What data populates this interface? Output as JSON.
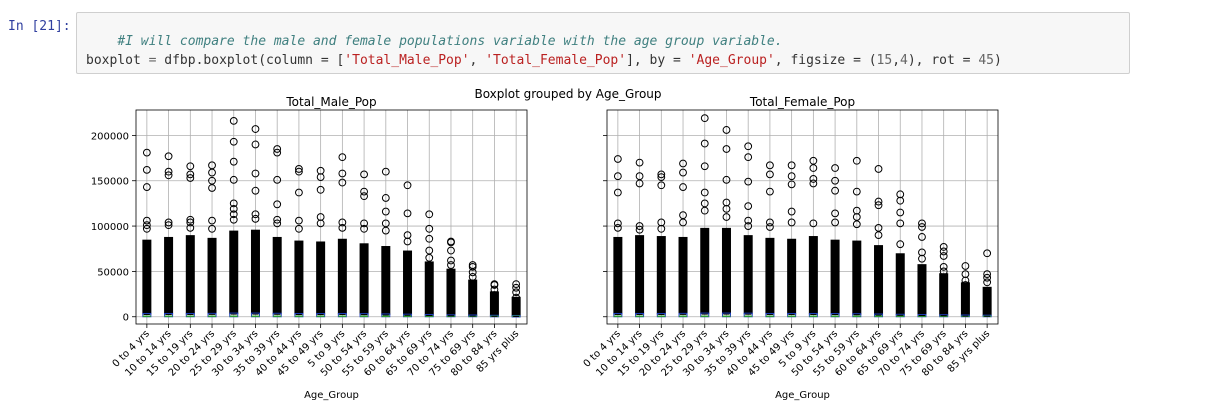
{
  "cell": {
    "prompt": "In [21]:",
    "comment": "#I will compare the male and female populations variable with the age group variable.",
    "code": {
      "var": "boxplot",
      "eq": " = ",
      "call": "dfbp.boxplot(column = [",
      "s1": "'Total_Male_Pop'",
      "sep1": ", ",
      "s2": "'Total_Female_Pop'",
      "mid": "], by = ",
      "s3": "'Age_Group'",
      "mid2": ", figsize = (",
      "n1": "15",
      "comma": ",",
      "n2": "4",
      "mid3": "), rot = ",
      "n3": "45",
      "end": ")"
    }
  },
  "colors": {
    "box": "#1f3fbf",
    "median": "#2ca02c",
    "whisker": "#000000",
    "flier": "#000000",
    "grid": "#b0b0b0"
  },
  "chart_data": {
    "type": "box",
    "suptitle": "Boxplot grouped by Age_Group",
    "xlabel": "Age_Group",
    "ylim": [
      -8000,
      228000
    ],
    "yticks": [
      0,
      50000,
      100000,
      150000,
      200000
    ],
    "ytick_labels": [
      "0",
      "50000",
      "100000",
      "150000",
      "200000"
    ],
    "grid": true,
    "categories": [
      "0 to 4 yrs",
      "10 to 14 yrs",
      "15 to 19 yrs",
      "20 to 24 yrs",
      "25 to 29 yrs",
      "30 to 34 yrs",
      "35 to 39 yrs",
      "40 to 44 yrs",
      "45 to 49 yrs",
      "5 to 9 yrs",
      "50 to 54 yrs",
      "55 to 59 yrs",
      "60 to 64 yrs",
      "65 to 69 yrs",
      "70 to 74 yrs",
      "75 to 69 yrs",
      "80 to 84 yrs",
      "85 yrs plus"
    ],
    "panels": [
      {
        "title": "Total_Male_Pop",
        "whisker_top": [
          2500,
          2500,
          2500,
          2600,
          2900,
          2900,
          2700,
          2400,
          2400,
          2500,
          2300,
          2000,
          1700,
          1400,
          1000,
          800,
          500,
          300
        ],
        "flier_max": [
          181000,
          177000,
          166000,
          167000,
          216000,
          207000,
          185000,
          163000,
          161000,
          176000,
          157000,
          160000,
          145000,
          113000,
          83000,
          57000,
          36000,
          36000
        ],
        "outliers": [
          [
            162000,
            143000,
            106000,
            101000,
            97000
          ],
          [
            160000,
            156000,
            104000,
            101000
          ],
          [
            157000,
            153000,
            107000,
            104000,
            98000
          ],
          [
            159000,
            150000,
            142000,
            106000,
            97000
          ],
          [
            193000,
            171000,
            151000,
            125000,
            119000,
            113000,
            107000
          ],
          [
            190000,
            158000,
            139000,
            113000,
            108000
          ],
          [
            181000,
            151000,
            124000,
            107000,
            103000
          ],
          [
            160000,
            137000,
            106000,
            97000
          ],
          [
            154000,
            140000,
            110000,
            103000
          ],
          [
            158000,
            148000,
            104000,
            98000
          ],
          [
            138000,
            133000,
            103000,
            97000
          ],
          [
            131000,
            116000,
            103000,
            95000
          ],
          [
            114000,
            90000,
            83000
          ],
          [
            97000,
            86000,
            73000,
            65000
          ],
          [
            82000,
            73000,
            62000,
            57000
          ],
          [
            55000,
            49000,
            44000
          ],
          [
            35000,
            30000,
            24000,
            20000
          ],
          [
            32000,
            27000,
            21000,
            17000
          ]
        ],
        "dense_top": [
          85000,
          88000,
          90000,
          87000,
          95000,
          96000,
          88000,
          84000,
          83000,
          86000,
          81000,
          78000,
          73000,
          61000,
          53000,
          41000,
          28000,
          22000
        ]
      },
      {
        "title": "Total_Female_Pop",
        "whisker_top": [
          2500,
          2500,
          2500,
          2600,
          2900,
          2900,
          2800,
          2500,
          2500,
          2500,
          2400,
          2200,
          1900,
          1600,
          1300,
          1100,
          800,
          600
        ],
        "flier_max": [
          174000,
          170000,
          157000,
          169000,
          219000,
          206000,
          188000,
          167000,
          167000,
          172000,
          164000,
          172000,
          163000,
          135000,
          103000,
          77000,
          56000,
          70000
        ],
        "outliers": [
          [
            155000,
            137000,
            103000,
            98000
          ],
          [
            155000,
            147000,
            100000,
            96000
          ],
          [
            154000,
            145000,
            104000,
            97000
          ],
          [
            159000,
            143000,
            112000,
            104000
          ],
          [
            191000,
            166000,
            137000,
            125000,
            117000
          ],
          [
            185000,
            151000,
            126000,
            119000,
            110000
          ],
          [
            176000,
            149000,
            122000,
            106000,
            100000
          ],
          [
            157000,
            138000,
            104000,
            99000
          ],
          [
            155000,
            146000,
            116000,
            104000
          ],
          [
            164000,
            152000,
            147000,
            103000
          ],
          [
            150000,
            139000,
            114000,
            104000
          ],
          [
            138000,
            117000,
            110000,
            102000
          ],
          [
            127000,
            123000,
            98000,
            90000
          ],
          [
            128000,
            115000,
            103000,
            80000
          ],
          [
            99000,
            88000,
            71000,
            64000
          ],
          [
            72000,
            67000,
            55000,
            50000
          ],
          [
            47000,
            40000,
            35000
          ],
          [
            47000,
            43000,
            38000
          ]
        ],
        "dense_top": [
          88000,
          90000,
          89000,
          88000,
          98000,
          98000,
          90000,
          87000,
          86000,
          89000,
          85000,
          84000,
          79000,
          70000,
          58000,
          48000,
          38000,
          33000
        ]
      }
    ]
  }
}
